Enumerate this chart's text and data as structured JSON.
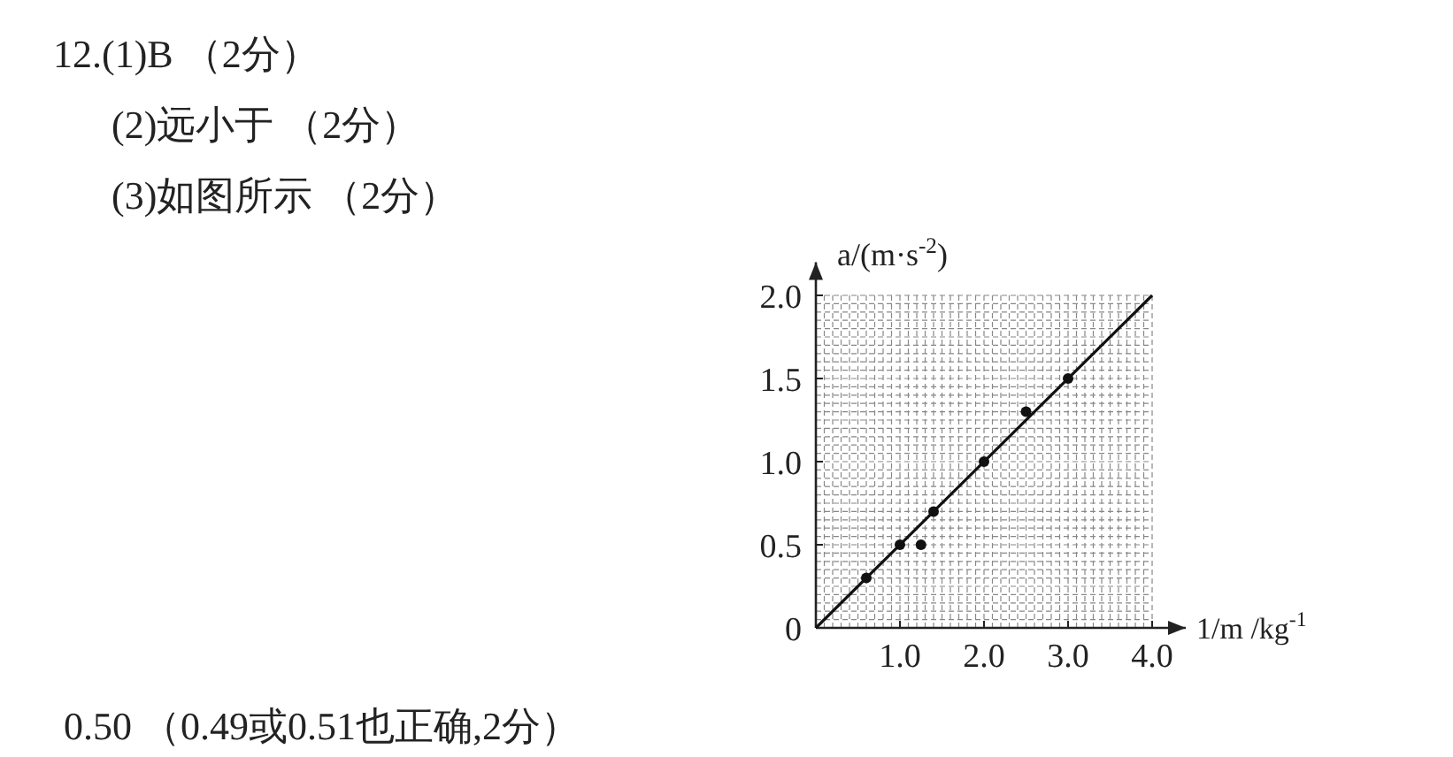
{
  "chart_data": {
    "type": "scatter",
    "xlabel": "1/m /kg$^{-1}$",
    "ylabel": "a/(m·s$^{-2}$)",
    "xlim": [
      0,
      4.4
    ],
    "ylim": [
      0,
      2.2
    ],
    "xticks": [
      {
        "value": 0,
        "label": null
      },
      {
        "value": 1,
        "label": "1.0"
      },
      {
        "value": 2,
        "label": "2.0"
      },
      {
        "value": 3,
        "label": "3.0"
      },
      {
        "value": 4,
        "label": "4.0"
      }
    ],
    "yticks": [
      0,
      0.5,
      {
        "value": 1,
        "label": "1.0"
      },
      1.5,
      {
        "value": 2,
        "label": "2.0"
      }
    ],
    "grid": true,
    "marker": "circle",
    "annotations": [
      "12.(1)B （2分）",
      "(2)远小于 （2分）",
      "(3)如图所示 （2分）",
      "0.50 （0.49或0.51也正确,2分）"
    ],
    "series": [
      {
        "type": "scatter",
        "color": "#111111",
        "x": [
          0.6,
          1.0,
          1.25,
          1.4,
          2.0,
          2.5,
          3.0
        ],
        "values": [
          0.3,
          0.5,
          0.5,
          0.7,
          1.0,
          1.3,
          1.5
        ]
      },
      {
        "type": "line",
        "color": "#111111",
        "line_style": "solid",
        "marker": "none",
        "x": [
          0,
          4.0
        ],
        "values": [
          0,
          2.0
        ]
      }
    ]
  }
}
